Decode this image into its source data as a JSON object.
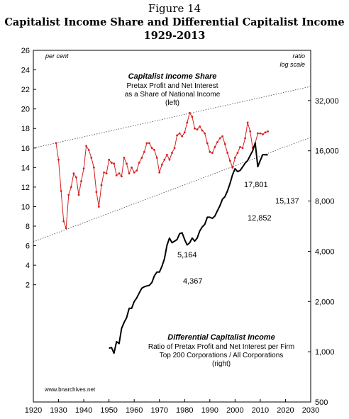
{
  "figure": {
    "number": "Figure 14",
    "title_line1": "Capitalist Income Share and Differential Capitalist Income",
    "title_line2": "1929-2013"
  },
  "chart_data": {
    "type": "line",
    "left_axis_unit": "per cent",
    "right_axis_unit_line1": "ratio",
    "right_axis_unit_line2": "log scale",
    "x_ticks": [
      1920,
      1930,
      1940,
      1950,
      1960,
      1970,
      1980,
      1990,
      2000,
      2010,
      2020,
      2030
    ],
    "y_left_ticks": [
      2,
      4,
      6,
      8,
      10,
      12,
      14,
      16,
      18,
      20,
      22,
      24,
      26
    ],
    "y_right_ticks": [
      500,
      1000,
      2000,
      4000,
      8000,
      16000,
      32000
    ],
    "y_right_tick_labels": [
      "500",
      "1,000",
      "2,000",
      "4,000",
      "8,000",
      "16,000",
      "32,000"
    ],
    "xlim": [
      1920,
      2030
    ],
    "ylim_left": [
      -10,
      26
    ],
    "ylim_right_log": [
      500,
      64000
    ],
    "grid": false,
    "annotations": {
      "share_title": "Capitalist Income Share",
      "share_body1": "Pretax Profit and Net Interest",
      "share_body2": "as a Share of National Income",
      "share_body3": "(left)",
      "diff_title": "Differential Capitalist Income",
      "diff_body1": "Ratio of Pretax Profit and Net Interest per Firm",
      "diff_body2": "Top 200 Corporations / All Corporations",
      "diff_body3": "(right)",
      "label_5164": "5,164",
      "label_4367": "4,367",
      "label_17801": "17,801",
      "label_12852": "12,852",
      "label_15137": "15,137",
      "source": "www.bnarchives.net"
    },
    "series": [
      {
        "name": "Capitalist Income Share",
        "axis": "left",
        "color": "#d42020",
        "x": [
          1929,
          1930,
          1931,
          1932,
          1933,
          1934,
          1935,
          1936,
          1937,
          1938,
          1939,
          1940,
          1941,
          1942,
          1943,
          1944,
          1945,
          1946,
          1947,
          1948,
          1949,
          1950,
          1951,
          1952,
          1953,
          1954,
          1955,
          1956,
          1957,
          1958,
          1959,
          1960,
          1961,
          1962,
          1963,
          1964,
          1965,
          1966,
          1967,
          1968,
          1969,
          1970,
          1971,
          1972,
          1973,
          1974,
          1975,
          1976,
          1977,
          1978,
          1979,
          1980,
          1981,
          1982,
          1983,
          1984,
          1985,
          1986,
          1987,
          1988,
          1989,
          1990,
          1991,
          1992,
          1993,
          1994,
          1995,
          1996,
          1997,
          1998,
          1999,
          2000,
          2001,
          2002,
          2003,
          2004,
          2005,
          2006,
          2007,
          2008,
          2009,
          2010,
          2011,
          2012,
          2013
        ],
        "values": [
          16.5,
          14.8,
          11.6,
          8.5,
          7.8,
          11.2,
          12.0,
          13.4,
          13.0,
          11.2,
          12.6,
          13.9,
          16.2,
          15.8,
          15.0,
          14.0,
          11.5,
          10.0,
          12.2,
          13.5,
          13.4,
          14.8,
          14.5,
          14.4,
          13.2,
          13.4,
          13.1,
          15.0,
          14.4,
          13.4,
          14.0,
          13.5,
          13.7,
          14.5,
          15.0,
          15.6,
          16.5,
          16.5,
          16.0,
          15.8,
          15.0,
          13.5,
          14.3,
          14.8,
          15.3,
          14.8,
          15.5,
          16.0,
          17.3,
          17.5,
          17.2,
          17.6,
          18.6,
          19.6,
          19.2,
          18.0,
          17.9,
          18.2,
          17.8,
          17.5,
          16.5,
          15.6,
          15.5,
          16.1,
          16.6,
          17.0,
          17.2,
          16.4,
          15.5,
          14.7,
          14.0,
          15.0,
          15.5,
          16.1,
          16.0,
          17.0,
          18.6,
          17.7,
          16.0,
          16.5,
          17.5,
          17.5,
          17.4,
          17.6,
          17.7
        ]
      },
      {
        "name": "Differential Capitalist Income",
        "axis": "right",
        "color": "#000000",
        "x": [
          1950,
          1951,
          1952,
          1953,
          1954,
          1955,
          1956,
          1957,
          1958,
          1959,
          1960,
          1961,
          1962,
          1963,
          1964,
          1965,
          1966,
          1967,
          1968,
          1969,
          1970,
          1971,
          1972,
          1973,
          1974,
          1975,
          1976,
          1977,
          1978,
          1979,
          1980,
          1981,
          1982,
          1983,
          1984,
          1985,
          1986,
          1987,
          1988,
          1989,
          1990,
          1991,
          1992,
          1993,
          1994,
          1995,
          1996,
          1997,
          1998,
          1999,
          2000,
          2001,
          2002,
          2003,
          2004,
          2005,
          2006,
          2007,
          2008,
          2009,
          2010,
          2011,
          2012,
          2013
        ],
        "values": [
          1050,
          1060,
          980,
          1150,
          1120,
          1380,
          1500,
          1600,
          1820,
          1820,
          2000,
          2100,
          2250,
          2400,
          2450,
          2480,
          2500,
          2600,
          2850,
          3000,
          3000,
          3250,
          3600,
          4350,
          4800,
          4500,
          4600,
          4700,
          5100,
          5164,
          4700,
          4367,
          4500,
          4800,
          4600,
          4800,
          5300,
          5600,
          5800,
          6400,
          6400,
          6300,
          6500,
          7000,
          7500,
          8200,
          8500,
          9200,
          10200,
          11500,
          12500,
          12000,
          12200,
          12800,
          13500,
          14000,
          15000,
          16000,
          17801,
          12852,
          14000,
          15200,
          15137,
          15137
        ]
      }
    ]
  }
}
